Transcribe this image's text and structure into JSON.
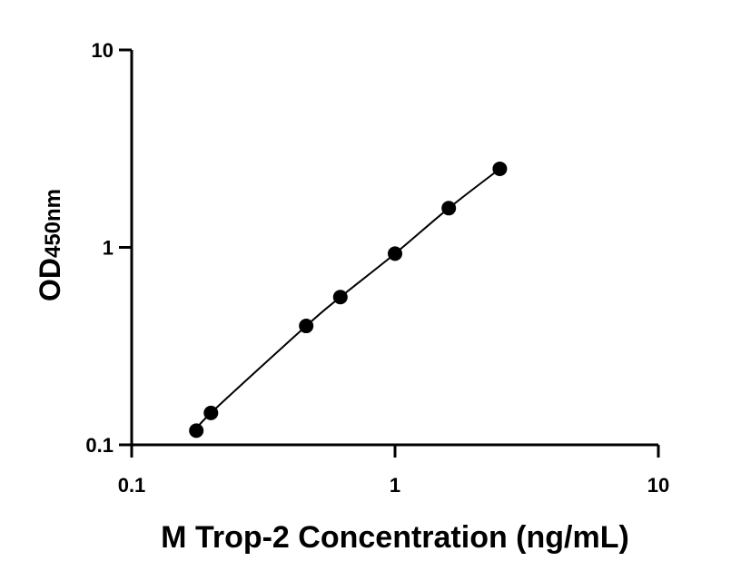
{
  "chart_data": {
    "type": "scatter",
    "title": "",
    "xlabel": "M Trop-2 Concentration (ng/mL)",
    "ylabel_main": "OD",
    "ylabel_sub": "450nm",
    "xscale": "log",
    "yscale": "log",
    "xlim": [
      0.1,
      10
    ],
    "ylim": [
      0.1,
      10
    ],
    "xticks": [
      0.1,
      1,
      10
    ],
    "xtick_labels": [
      "0.1",
      "1",
      "10"
    ],
    "yticks": [
      0.1,
      1,
      10
    ],
    "ytick_labels": [
      "0.1",
      "1",
      "10"
    ],
    "grid": false,
    "series": [
      {
        "x": [
          0.176,
          0.2,
          0.46,
          0.62,
          1.0,
          1.6,
          2.5
        ],
        "y": [
          0.118,
          0.145,
          0.4,
          0.56,
          0.93,
          1.58,
          2.5
        ],
        "fit_line": true
      }
    ],
    "colors": {
      "marker": "#000000",
      "line": "#000000",
      "axis": "#000000"
    }
  }
}
